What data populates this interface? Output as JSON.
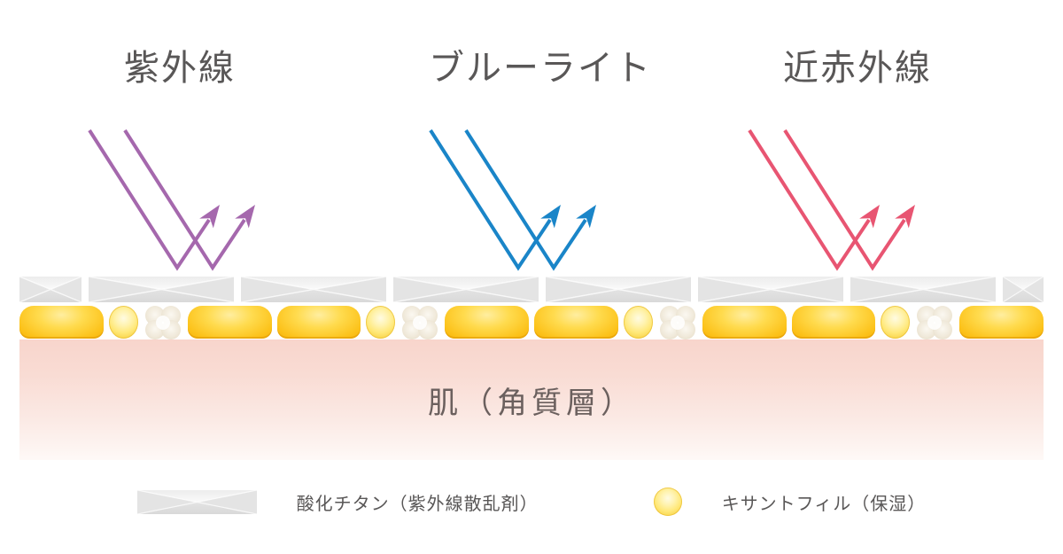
{
  "diagram": {
    "rays": [
      {
        "name": "uv",
        "label": "紫外線",
        "color": "#a568ad"
      },
      {
        "name": "blue-light",
        "label": "ブルーライト",
        "color": "#1a85c8"
      },
      {
        "name": "near-infrared",
        "label": "近赤外線",
        "color": "#e85572"
      }
    ],
    "skin_label": "肌（角質層）",
    "barrier": {
      "tile_count": 8,
      "pattern_repeats": 4
    }
  },
  "legend": {
    "items": [
      {
        "swatch": "titanium-tile-swatch",
        "label": "酸化チタン（紫外線散乱剤）"
      },
      {
        "swatch": "xanthophyll-circle-swatch",
        "label": "キサントフィル（保湿）"
      }
    ]
  },
  "colors": {
    "heading_text": "#595757",
    "skin_text": "#6b605e",
    "skin_top": "#f8d5cc",
    "skin_bottom": "#fef9f7",
    "tile_base": "#e8e8e8",
    "lozenge_yellow": "#fcc21a",
    "clover_cream": "#e6dcc8"
  }
}
